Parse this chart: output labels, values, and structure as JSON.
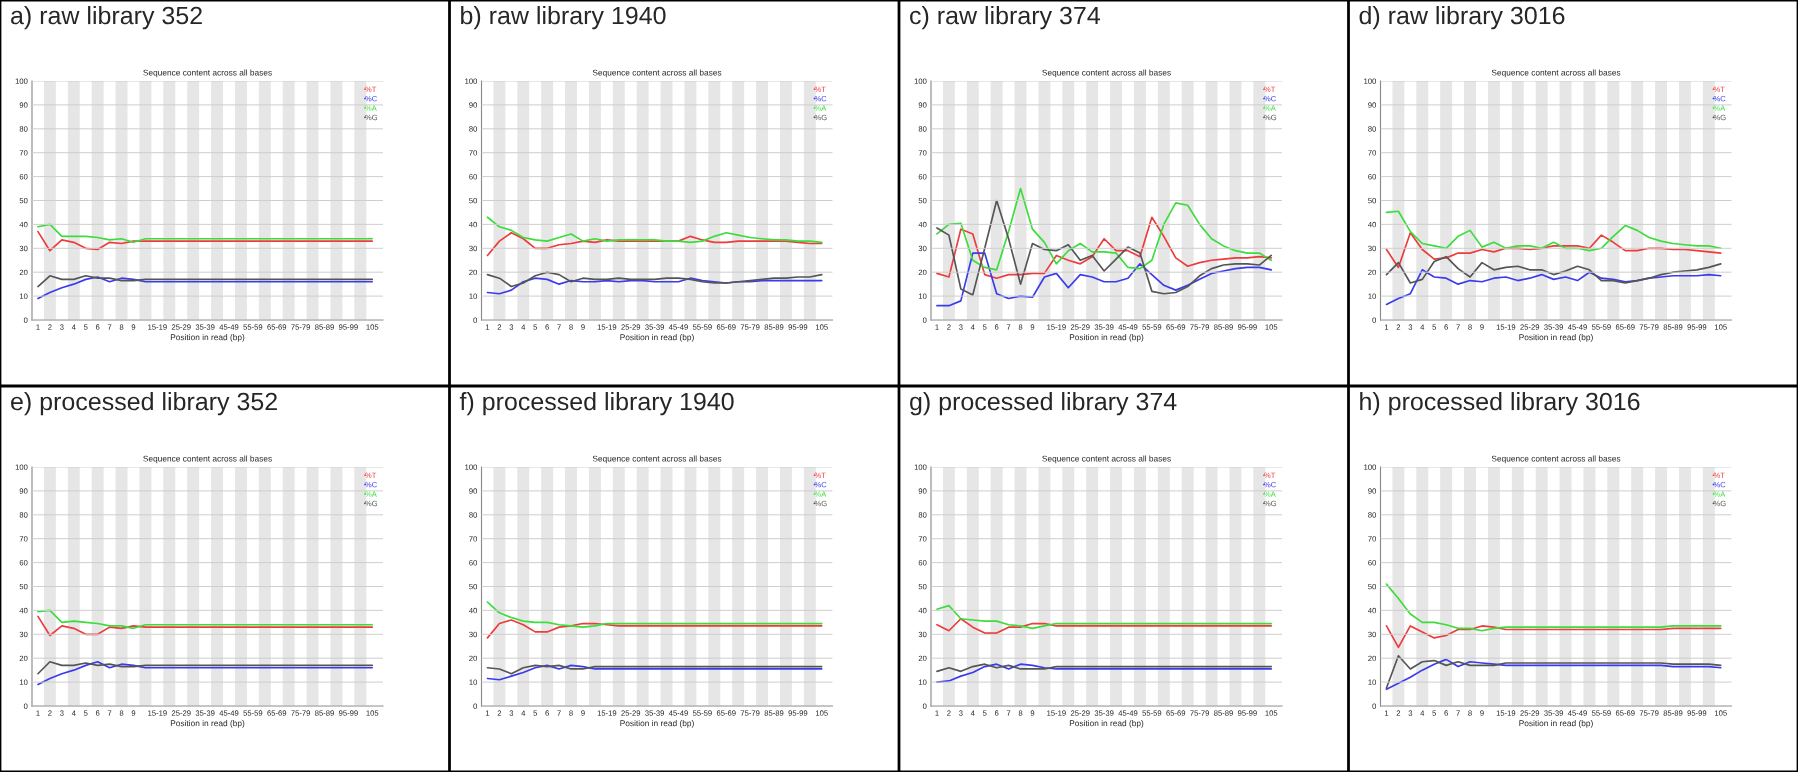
{
  "chart_data": [
    {
      "type": "line",
      "title": "a) raw library 352",
      "subtitle": "Sequence content across all bases",
      "xlabel": "Position in read (bp)",
      "categories": [
        "1",
        "2",
        "3",
        "4",
        "5",
        "6",
        "7",
        "8",
        "9",
        null,
        "15-19",
        null,
        "25-29",
        null,
        "35-39",
        null,
        "45-49",
        null,
        "55-59",
        null,
        "65-69",
        null,
        "75-79",
        null,
        "85-89",
        null,
        "95-99",
        null,
        "105"
      ],
      "ylim": [
        0,
        100
      ],
      "yticks": [
        0,
        10,
        20,
        30,
        40,
        50,
        60,
        70,
        80,
        90,
        100
      ],
      "grid": "y",
      "legend": "top right",
      "line_style": "solid",
      "series": [
        {
          "name": "%T",
          "color": "#ee3b3b",
          "values": [
            37,
            29,
            33.5,
            32.5,
            30,
            29.5,
            32.5,
            32,
            33,
            33,
            33,
            33,
            33,
            33,
            33,
            33,
            33,
            33,
            33,
            33,
            33,
            33,
            33,
            33,
            33,
            33,
            33,
            33,
            33
          ]
        },
        {
          "name": "%C",
          "color": "#3b3bee",
          "values": [
            9,
            11.5,
            13.5,
            15,
            17,
            18,
            16,
            17.5,
            17,
            16,
            16,
            16,
            16,
            16,
            16,
            16,
            16,
            16,
            16,
            16,
            16,
            16,
            16,
            16,
            16,
            16,
            16,
            16,
            16
          ]
        },
        {
          "name": "%A",
          "color": "#3bdd3b",
          "values": [
            39,
            40,
            35,
            35,
            35,
            34.5,
            33.5,
            34,
            32.5,
            34,
            34,
            34,
            34,
            34,
            34,
            34,
            34,
            34,
            34,
            34,
            34,
            34,
            34,
            34,
            34,
            34,
            34,
            34,
            34
          ]
        },
        {
          "name": "%G",
          "color": "#555555",
          "values": [
            14,
            18.5,
            17,
            17,
            18.5,
            17.5,
            17.5,
            16.5,
            16.5,
            17,
            17,
            17,
            17,
            17,
            17,
            17,
            17,
            17,
            17,
            17,
            17,
            17,
            17,
            17,
            17,
            17,
            17,
            17,
            17
          ]
        }
      ]
    },
    {
      "type": "line",
      "title": "b) raw library 1940",
      "subtitle": "Sequence content across all bases",
      "xlabel": "Position in read (bp)",
      "categories": [
        "1",
        "2",
        "3",
        "4",
        "5",
        "6",
        "7",
        "8",
        "9",
        null,
        "15-19",
        null,
        "25-29",
        null,
        "35-39",
        null,
        "45-49",
        null,
        "55-59",
        null,
        "65-69",
        null,
        "75-79",
        null,
        "85-89",
        null,
        "95-99",
        null,
        "105"
      ],
      "ylim": [
        0,
        100
      ],
      "yticks": [
        0,
        10,
        20,
        30,
        40,
        50,
        60,
        70,
        80,
        90,
        100
      ],
      "grid": "y",
      "legend": "top right",
      "line_style": "solid",
      "series": [
        {
          "name": "%T",
          "color": "#ee3b3b",
          "values": [
            27,
            33,
            36.5,
            34,
            30,
            30,
            31.5,
            32,
            33,
            32.5,
            33.5,
            33,
            33,
            33,
            33,
            33,
            33,
            35,
            33.5,
            32.5,
            32.5,
            33,
            33,
            33,
            33,
            33,
            32.5,
            32,
            32
          ]
        },
        {
          "name": "%C",
          "color": "#3b3bee",
          "values": [
            11.5,
            11,
            12.5,
            16,
            17.5,
            17,
            15,
            16.5,
            16,
            16,
            16.5,
            16,
            16.5,
            16.5,
            16,
            16,
            16,
            17.5,
            16.5,
            16,
            15.5,
            16,
            16,
            16.5,
            16.5,
            16.5,
            16.5,
            16.5,
            16.5
          ]
        },
        {
          "name": "%A",
          "color": "#3bdd3b",
          "values": [
            43,
            39,
            37.5,
            34.5,
            33.5,
            33,
            34.5,
            36,
            33,
            34,
            33,
            33.5,
            33.5,
            33.5,
            33.5,
            33,
            33,
            32.5,
            33,
            35,
            36.5,
            35.5,
            34.5,
            34,
            33.5,
            33.5,
            33,
            33,
            32.5
          ]
        },
        {
          "name": "%G",
          "color": "#555555",
          "values": [
            19,
            17.5,
            14,
            15.5,
            18.5,
            20,
            19,
            16,
            17.5,
            17,
            17,
            17.5,
            17,
            17,
            17,
            17.5,
            17.5,
            17,
            16,
            15.5,
            15.5,
            16,
            16.5,
            17,
            17.5,
            17.5,
            18,
            18,
            19
          ]
        }
      ]
    },
    {
      "type": "line",
      "title": "c) raw library 374",
      "subtitle": "Sequence content across all bases",
      "xlabel": "Position in read (bp)",
      "categories": [
        "1",
        "2",
        "3",
        "4",
        "5",
        "6",
        "7",
        "8",
        "9",
        null,
        "15-19",
        null,
        "25-29",
        null,
        "35-39",
        null,
        "45-49",
        null,
        "55-59",
        null,
        "65-69",
        null,
        "75-79",
        null,
        "85-89",
        null,
        "95-99",
        null,
        "105"
      ],
      "ylim": [
        0,
        100
      ],
      "yticks": [
        0,
        10,
        20,
        30,
        40,
        50,
        60,
        70,
        80,
        90,
        100
      ],
      "grid": "y",
      "legend": "top right",
      "line_style": "solid",
      "series": [
        {
          "name": "%T",
          "color": "#ee3b3b",
          "values": [
            19.5,
            18,
            38,
            36,
            19,
            17.5,
            19,
            19,
            19.5,
            19.5,
            27,
            25,
            23.5,
            26.5,
            34,
            29,
            29,
            26.5,
            43,
            35,
            26,
            22.5,
            24,
            25,
            25.5,
            26,
            26,
            26.5,
            26
          ]
        },
        {
          "name": "%C",
          "color": "#3b3bee",
          "values": [
            6,
            6,
            8,
            28,
            28,
            11,
            9,
            10,
            9.5,
            18,
            19.5,
            13.5,
            19,
            18,
            16,
            16,
            17.5,
            23.5,
            19,
            14.5,
            12.5,
            14.5,
            17,
            19.5,
            20.5,
            21.5,
            22,
            22,
            21
          ]
        },
        {
          "name": "%A",
          "color": "#3bdd3b",
          "values": [
            36,
            40,
            40.5,
            25,
            22,
            21,
            37,
            55,
            38,
            32.5,
            23.5,
            29,
            32,
            28.5,
            28.5,
            28,
            22,
            21.5,
            25,
            40,
            49,
            48,
            40,
            34,
            31,
            29,
            28,
            28,
            25
          ]
        },
        {
          "name": "%G",
          "color": "#555555",
          "values": [
            38.5,
            35.5,
            13,
            10.5,
            30,
            50,
            34,
            15,
            32,
            29.5,
            29,
            31.5,
            25,
            27,
            20.5,
            25.5,
            30.5,
            28,
            12,
            11,
            11.5,
            14,
            18.5,
            21.5,
            23,
            23.5,
            23.5,
            23,
            27
          ]
        }
      ]
    },
    {
      "type": "line",
      "title": "d) raw library 3016",
      "subtitle": "Sequence content across all bases",
      "xlabel": "Position in read (bp)",
      "categories": [
        "1",
        "2",
        "3",
        "4",
        "5",
        "6",
        "7",
        "8",
        "9",
        null,
        "15-19",
        null,
        "25-29",
        null,
        "35-39",
        null,
        "45-49",
        null,
        "55-59",
        null,
        "65-69",
        null,
        "75-79",
        null,
        "85-89",
        null,
        "95-99",
        null,
        "105"
      ],
      "ylim": [
        0,
        100
      ],
      "yticks": [
        0,
        10,
        20,
        30,
        40,
        50,
        60,
        70,
        80,
        90,
        100
      ],
      "grid": "y",
      "legend": "top right",
      "line_style": "solid",
      "series": [
        {
          "name": "%T",
          "color": "#ee3b3b",
          "values": [
            29.5,
            22,
            36.5,
            29.5,
            25.5,
            26,
            28,
            28,
            29.5,
            28.5,
            30,
            30,
            29.5,
            30,
            31,
            31,
            31,
            30,
            35.5,
            32.5,
            29,
            29,
            30,
            30,
            29.5,
            29.5,
            29,
            28.5,
            28
          ]
        },
        {
          "name": "%C",
          "color": "#3b3bee",
          "values": [
            6.5,
            9,
            11,
            21,
            18,
            17.5,
            15,
            16.5,
            16,
            17.5,
            18,
            16.5,
            17.5,
            19,
            17,
            18,
            16.5,
            20,
            17.5,
            17,
            16,
            16.5,
            17.5,
            18,
            18.5,
            18.5,
            18.5,
            19,
            18.5
          ]
        },
        {
          "name": "%A",
          "color": "#3bdd3b",
          "values": [
            45,
            45.5,
            37,
            32,
            31,
            30,
            35,
            37.5,
            30.5,
            32.5,
            30,
            31,
            31,
            30,
            32.5,
            30,
            30,
            29,
            30,
            35,
            39.5,
            37.5,
            34.5,
            33,
            32,
            31.5,
            31,
            31,
            30
          ]
        },
        {
          "name": "%G",
          "color": "#555555",
          "values": [
            19,
            24,
            15.5,
            17,
            24.5,
            26.5,
            21.5,
            18,
            24,
            21,
            22,
            22.5,
            21,
            21,
            19,
            20.5,
            22.5,
            21,
            16.5,
            16.5,
            15.5,
            16.5,
            17.5,
            19,
            20,
            20.5,
            21,
            22,
            23.5
          ]
        }
      ]
    },
    {
      "type": "line",
      "title": "e) processed library 352",
      "subtitle": "Sequence content across all bases",
      "xlabel": "Position in read (bp)",
      "categories": [
        "1",
        "2",
        "3",
        "4",
        "5",
        "6",
        "7",
        "8",
        "9",
        null,
        "15-19",
        null,
        "25-29",
        null,
        "35-39",
        null,
        "45-49",
        null,
        "55-59",
        null,
        "65-69",
        null,
        "75-79",
        null,
        "85-89",
        null,
        "95-99",
        null,
        "105"
      ],
      "ylim": [
        0,
        100
      ],
      "yticks": [
        0,
        10,
        20,
        30,
        40,
        50,
        60,
        70,
        80,
        90,
        100
      ],
      "grid": "y",
      "legend": "top right",
      "line_style": "solid",
      "series": [
        {
          "name": "%T",
          "color": "#ee3b3b",
          "values": [
            37.5,
            29.5,
            33.5,
            32.5,
            30,
            30,
            33,
            32.5,
            33.5,
            33,
            33,
            33,
            33,
            33,
            33,
            33,
            33,
            33,
            33,
            33,
            33,
            33,
            33,
            33,
            33,
            33,
            33,
            33,
            33
          ]
        },
        {
          "name": "%C",
          "color": "#3b3bee",
          "values": [
            9,
            11.5,
            13.5,
            15,
            17,
            18.5,
            16,
            17.5,
            17,
            16,
            16,
            16,
            16,
            16,
            16,
            16,
            16,
            16,
            16,
            16,
            16,
            16,
            16,
            16,
            16,
            16,
            16,
            16,
            16
          ]
        },
        {
          "name": "%A",
          "color": "#3bdd3b",
          "values": [
            39.5,
            40,
            35,
            35.5,
            35,
            34.5,
            33.5,
            33.5,
            32.5,
            34,
            34,
            34,
            34,
            34,
            34,
            34,
            34,
            34,
            34,
            34,
            34,
            34,
            34,
            34,
            34,
            34,
            34,
            34,
            34
          ]
        },
        {
          "name": "%G",
          "color": "#555555",
          "values": [
            13.5,
            18.5,
            17,
            17,
            18,
            17,
            17.5,
            16.5,
            16.5,
            17,
            17,
            17,
            17,
            17,
            17,
            17,
            17,
            17,
            17,
            17,
            17,
            17,
            17,
            17,
            17,
            17,
            17,
            17,
            17
          ]
        }
      ]
    },
    {
      "type": "line",
      "title": "f) processed library 1940",
      "subtitle": "Sequence content across all bases",
      "xlabel": "Position in read (bp)",
      "categories": [
        "1",
        "2",
        "3",
        "4",
        "5",
        "6",
        "7",
        "8",
        "9",
        null,
        "15-19",
        null,
        "25-29",
        null,
        "35-39",
        null,
        "45-49",
        null,
        "55-59",
        null,
        "65-69",
        null,
        "75-79",
        null,
        "85-89",
        null,
        "95-99",
        null,
        "105"
      ],
      "ylim": [
        0,
        100
      ],
      "yticks": [
        0,
        10,
        20,
        30,
        40,
        50,
        60,
        70,
        80,
        90,
        100
      ],
      "grid": "y",
      "legend": "top right",
      "line_style": "solid",
      "series": [
        {
          "name": "%T",
          "color": "#ee3b3b",
          "values": [
            28.5,
            34.5,
            36,
            34,
            31,
            31,
            33,
            33.5,
            34.5,
            34.5,
            34,
            33.5,
            33.5,
            33.5,
            33.5,
            33.5,
            33.5,
            33.5,
            33.5,
            33.5,
            33.5,
            33.5,
            33.5,
            33.5,
            33.5,
            33.5,
            33.5,
            33.5,
            33.5
          ]
        },
        {
          "name": "%C",
          "color": "#3b3bee",
          "values": [
            11.5,
            11,
            12.5,
            14,
            16,
            17,
            15.5,
            17,
            16.5,
            15.5,
            15.5,
            15.5,
            15.5,
            15.5,
            15.5,
            15.5,
            15.5,
            15.5,
            15.5,
            15.5,
            15.5,
            15.5,
            15.5,
            15.5,
            15.5,
            15.5,
            15.5,
            15.5,
            15.5
          ]
        },
        {
          "name": "%A",
          "color": "#3bdd3b",
          "values": [
            43.5,
            39,
            37,
            35.5,
            35,
            35,
            34,
            33.5,
            33,
            33.5,
            34.5,
            34.5,
            34.5,
            34.5,
            34.5,
            34.5,
            34.5,
            34.5,
            34.5,
            34.5,
            34.5,
            34.5,
            34.5,
            34.5,
            34.5,
            34.5,
            34.5,
            34.5,
            34.5
          ]
        },
        {
          "name": "%G",
          "color": "#555555",
          "values": [
            16,
            15.5,
            13.5,
            16,
            17,
            16.5,
            17,
            15.5,
            15.5,
            16.5,
            16.5,
            16.5,
            16.5,
            16.5,
            16.5,
            16.5,
            16.5,
            16.5,
            16.5,
            16.5,
            16.5,
            16.5,
            16.5,
            16.5,
            16.5,
            16.5,
            16.5,
            16.5,
            16.5
          ]
        }
      ]
    },
    {
      "type": "line",
      "title": "g) processed library 374",
      "subtitle": "Sequence content across all bases",
      "xlabel": "Position in read (bp)",
      "categories": [
        "1",
        "2",
        "3",
        "4",
        "5",
        "6",
        "7",
        "8",
        "9",
        null,
        "15-19",
        null,
        "25-29",
        null,
        "35-39",
        null,
        "45-49",
        null,
        "55-59",
        null,
        "65-69",
        null,
        "75-79",
        null,
        "85-89",
        null,
        "95-99",
        null,
        "105"
      ],
      "ylim": [
        0,
        100
      ],
      "yticks": [
        0,
        10,
        20,
        30,
        40,
        50,
        60,
        70,
        80,
        90,
        100
      ],
      "grid": "y",
      "legend": "top right",
      "line_style": "solid",
      "series": [
        {
          "name": "%T",
          "color": "#ee3b3b",
          "values": [
            34,
            31.5,
            36.5,
            33,
            30.5,
            30.5,
            33,
            33,
            34.5,
            34.5,
            33.5,
            33.5,
            33.5,
            33.5,
            33.5,
            33.5,
            33.5,
            33.5,
            33.5,
            33.5,
            33.5,
            33.5,
            33.5,
            33.5,
            33.5,
            33.5,
            33.5,
            33.5,
            33.5
          ]
        },
        {
          "name": "%C",
          "color": "#3b3bee",
          "values": [
            10,
            10.5,
            12.5,
            14,
            16.5,
            17.5,
            15.5,
            17.5,
            17,
            16,
            15.5,
            15.5,
            15.5,
            15.5,
            15.5,
            15.5,
            15.5,
            15.5,
            15.5,
            15.5,
            15.5,
            15.5,
            15.5,
            15.5,
            15.5,
            15.5,
            15.5,
            15.5,
            15.5
          ]
        },
        {
          "name": "%A",
          "color": "#3bdd3b",
          "values": [
            40.5,
            42,
            36.5,
            36,
            35.5,
            35.5,
            34,
            33.5,
            32.5,
            33.5,
            34.5,
            34.5,
            34.5,
            34.5,
            34.5,
            34.5,
            34.5,
            34.5,
            34.5,
            34.5,
            34.5,
            34.5,
            34.5,
            34.5,
            34.5,
            34.5,
            34.5,
            34.5,
            34.5
          ]
        },
        {
          "name": "%G",
          "color": "#555555",
          "values": [
            14.5,
            16,
            14.5,
            16.5,
            17.5,
            16,
            17,
            15.5,
            15.5,
            15.5,
            16.5,
            16.5,
            16.5,
            16.5,
            16.5,
            16.5,
            16.5,
            16.5,
            16.5,
            16.5,
            16.5,
            16.5,
            16.5,
            16.5,
            16.5,
            16.5,
            16.5,
            16.5,
            16.5
          ]
        }
      ]
    },
    {
      "type": "line",
      "title": "h) processed library 3016",
      "subtitle": "Sequence content across all bases",
      "xlabel": "Position in read (bp)",
      "categories": [
        "1",
        "2",
        "3",
        "4",
        "5",
        "6",
        "7",
        "8",
        "9",
        null,
        "15-19",
        null,
        "25-29",
        null,
        "35-39",
        null,
        "45-49",
        null,
        "55-59",
        null,
        "65-69",
        null,
        "75-79",
        null,
        "85-89",
        null,
        "95-99",
        null,
        "105"
      ],
      "ylim": [
        0,
        100
      ],
      "yticks": [
        0,
        10,
        20,
        30,
        40,
        50,
        60,
        70,
        80,
        90,
        100
      ],
      "grid": "y",
      "legend": "top right",
      "line_style": "solid",
      "series": [
        {
          "name": "%T",
          "color": "#ee3b3b",
          "values": [
            33.5,
            24.5,
            33.5,
            31,
            28.5,
            29.5,
            32,
            32,
            33.5,
            33,
            32,
            32,
            32,
            32,
            32,
            32,
            32,
            32,
            32,
            32,
            32,
            32,
            32,
            32,
            32.5,
            32.5,
            32.5,
            32.5,
            32.5
          ]
        },
        {
          "name": "%C",
          "color": "#3b3bee",
          "values": [
            7,
            9.5,
            12,
            15,
            17.5,
            19.5,
            16.5,
            18.5,
            18,
            17.5,
            17,
            17,
            17,
            17,
            17,
            17,
            17,
            17,
            17,
            17,
            17,
            17,
            17,
            17,
            16.5,
            16.5,
            16.5,
            16.5,
            16
          ]
        },
        {
          "name": "%A",
          "color": "#3bdd3b",
          "values": [
            51,
            45,
            38.5,
            35,
            35,
            34,
            32.5,
            32.5,
            31.5,
            32.5,
            33,
            33,
            33,
            33,
            33,
            33,
            33,
            33,
            33,
            33,
            33,
            33,
            33,
            33,
            33.5,
            33.5,
            33.5,
            33.5,
            33.5
          ]
        },
        {
          "name": "%G",
          "color": "#555555",
          "values": [
            7.5,
            21,
            15.5,
            18.5,
            19,
            17,
            18.5,
            17,
            17,
            17,
            18,
            18,
            18,
            18,
            18,
            18,
            18,
            18,
            18,
            18,
            18,
            18,
            18,
            18,
            17.5,
            17.5,
            17.5,
            17.5,
            17
          ]
        }
      ]
    }
  ]
}
